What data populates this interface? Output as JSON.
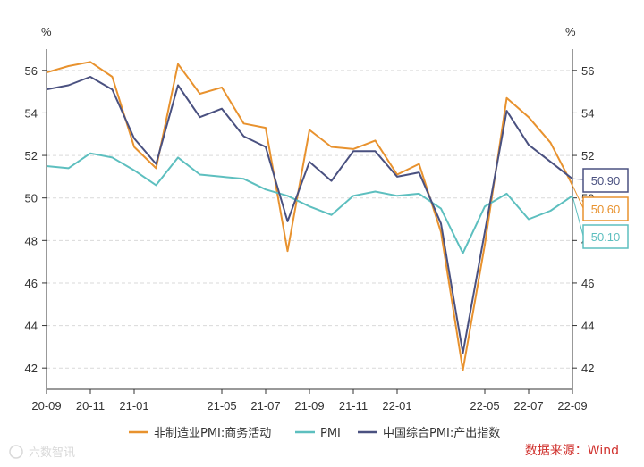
{
  "chart_data": {
    "type": "line",
    "y_unit_left": "%",
    "y_unit_right": "%",
    "ylim": [
      41,
      57
    ],
    "yticks": [
      42,
      44,
      46,
      48,
      50,
      52,
      54,
      56
    ],
    "x_tick_labels": [
      "20-09",
      "20-11",
      "21-01",
      "21-05",
      "21-07",
      "21-09",
      "21-11",
      "22-01",
      "22-05",
      "22-07",
      "22-09"
    ],
    "x": [
      "20-09",
      "20-10",
      "20-11",
      "20-12",
      "21-01",
      "21-02",
      "21-03",
      "21-04",
      "21-05",
      "21-06",
      "21-07",
      "21-08",
      "21-09",
      "21-10",
      "21-11",
      "21-12",
      "22-01",
      "22-02",
      "22-03",
      "22-04",
      "22-05",
      "22-06",
      "22-07",
      "22-08",
      "22-09"
    ],
    "grid": true,
    "legend_position": "bottom",
    "series": [
      {
        "name": "非制造业PMI:商务活动",
        "color": "#e8922e",
        "values": [
          55.9,
          56.2,
          56.4,
          55.7,
          52.4,
          51.4,
          56.3,
          54.9,
          55.2,
          53.5,
          53.3,
          47.5,
          53.2,
          52.4,
          52.3,
          52.7,
          51.1,
          51.6,
          48.4,
          41.9,
          47.8,
          54.7,
          53.8,
          52.6,
          50.6
        ],
        "end_label": "50.60"
      },
      {
        "name": "PMI",
        "color": "#5dbfbf",
        "values": [
          51.5,
          51.4,
          52.1,
          51.9,
          51.3,
          50.6,
          51.9,
          51.1,
          51.0,
          50.9,
          50.4,
          50.1,
          49.6,
          49.2,
          50.1,
          50.3,
          50.1,
          50.2,
          49.5,
          47.4,
          49.6,
          50.2,
          49.0,
          49.4,
          50.1
        ],
        "end_label": "50.10"
      },
      {
        "name": "中国综合PMI:产出指数",
        "color": "#4a5180",
        "values": [
          55.1,
          55.3,
          55.7,
          55.1,
          52.8,
          51.6,
          55.3,
          53.8,
          54.2,
          52.9,
          52.4,
          48.9,
          51.7,
          50.8,
          52.2,
          52.2,
          51.0,
          51.2,
          48.8,
          42.7,
          48.4,
          54.1,
          52.5,
          51.7,
          50.9
        ],
        "end_label": "50.90"
      }
    ]
  },
  "source_text": "数据来源：Wind",
  "watermark_text": "六数智讯"
}
